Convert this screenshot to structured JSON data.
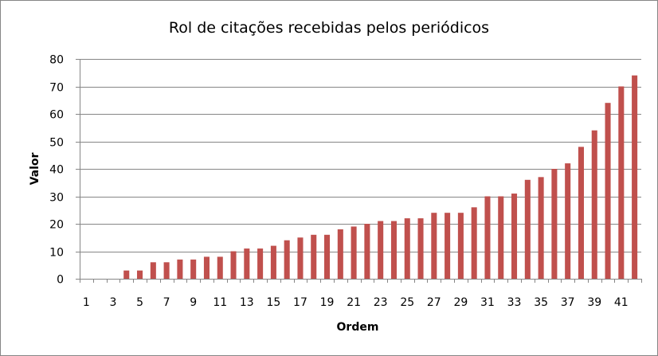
{
  "chart_data": {
    "type": "bar",
    "title": "Rol de citações recebidas pelos periódicos",
    "xlabel": "Ordem",
    "ylabel": "Valor",
    "ylim": [
      0,
      80
    ],
    "yticks": [
      "0",
      "10",
      "20",
      "30",
      "40",
      "50",
      "60",
      "70",
      "80"
    ],
    "grid": true,
    "legend": "none",
    "colors": {
      "bar": "#c0504d",
      "grid": "#868686"
    },
    "categories": [
      "1",
      "2",
      "3",
      "4",
      "5",
      "6",
      "7",
      "8",
      "9",
      "10",
      "11",
      "12",
      "13",
      "14",
      "15",
      "16",
      "17",
      "18",
      "19",
      "20",
      "21",
      "22",
      "23",
      "24",
      "25",
      "26",
      "27",
      "28",
      "29",
      "30",
      "31",
      "32",
      "33",
      "34",
      "35",
      "36",
      "37",
      "38",
      "39",
      "40",
      "41",
      "42"
    ],
    "xtick_labels": [
      "1",
      "3",
      "5",
      "7",
      "9",
      "11",
      "13",
      "15",
      "17",
      "19",
      "21",
      "23",
      "25",
      "27",
      "29",
      "31",
      "33",
      "35",
      "37",
      "39",
      "41"
    ],
    "values": [
      0,
      0,
      0,
      3,
      3,
      6,
      6,
      7,
      7,
      8,
      8,
      10,
      11,
      11,
      12,
      14,
      15,
      16,
      16,
      18,
      19,
      20,
      21,
      21,
      22,
      22,
      24,
      24,
      24,
      26,
      30,
      30,
      31,
      36,
      37,
      40,
      42,
      48,
      54,
      64,
      70,
      74
    ]
  }
}
